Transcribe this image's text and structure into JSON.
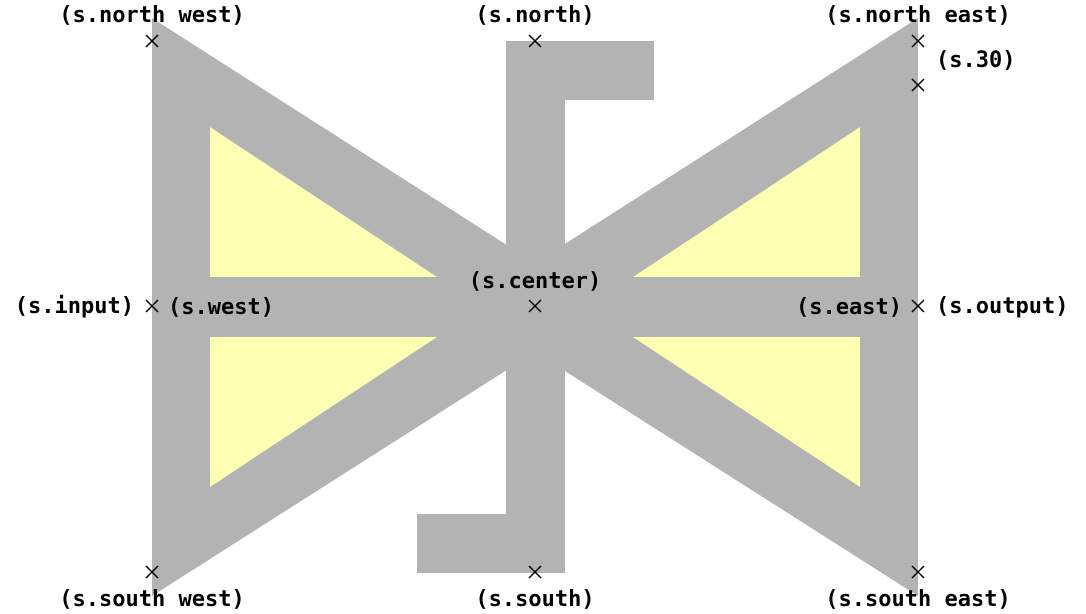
{
  "colors": {
    "fill": "#b3b3b3",
    "inner": "#ffffb3",
    "marker": "#000000"
  },
  "anchors": {
    "north_west": "(s.north west)",
    "north": "(s.north)",
    "north_east": "(s.north east)",
    "a30": "(s.30)",
    "input": "(s.input)",
    "west": "(s.west)",
    "center": "(s.center)",
    "east": "(s.east)",
    "output": "(s.output)",
    "south_west": "(s.south west)",
    "south": "(s.south)",
    "south_east": "(s.south east)"
  }
}
